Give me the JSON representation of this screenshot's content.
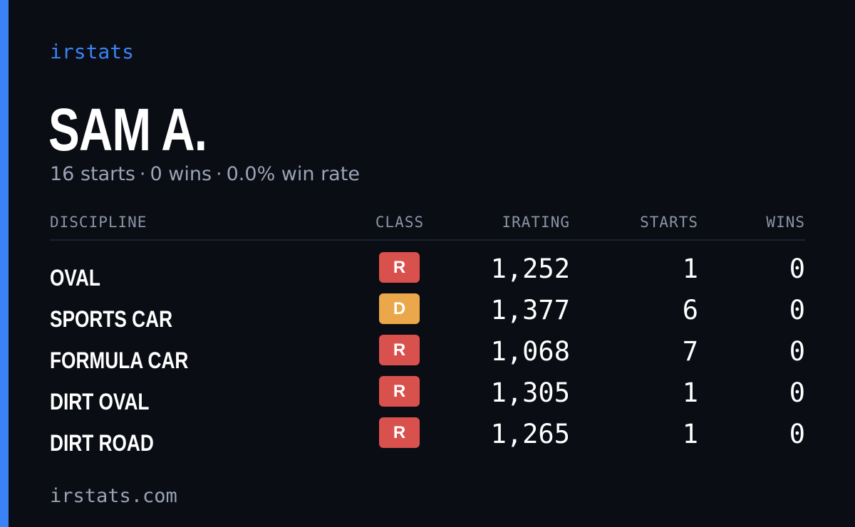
{
  "brand": "irstats",
  "driver": {
    "name": "SAM A.",
    "starts": "16 starts",
    "wins": "0 wins",
    "win_rate": "0.0% win rate",
    "separator": "·"
  },
  "table": {
    "headers": {
      "discipline": "DISCIPLINE",
      "class": "CLASS",
      "irating": "IRATING",
      "starts": "STARTS",
      "wins": "WINS"
    },
    "rows": [
      {
        "discipline": "OVAL",
        "class": "R",
        "irating": "1,252",
        "starts": "1",
        "wins": "0"
      },
      {
        "discipline": "SPORTS CAR",
        "class": "D",
        "irating": "1,377",
        "starts": "6",
        "wins": "0"
      },
      {
        "discipline": "FORMULA CAR",
        "class": "R",
        "irating": "1,068",
        "starts": "7",
        "wins": "0"
      },
      {
        "discipline": "DIRT OVAL",
        "class": "R",
        "irating": "1,305",
        "starts": "1",
        "wins": "0"
      },
      {
        "discipline": "DIRT ROAD",
        "class": "R",
        "irating": "1,265",
        "starts": "1",
        "wins": "0"
      }
    ]
  },
  "footer": "irstats.com",
  "colors": {
    "accent": "#3b82f6",
    "background": "#0a0d14",
    "class_r": "#d9514d",
    "class_d": "#eaa84a"
  }
}
